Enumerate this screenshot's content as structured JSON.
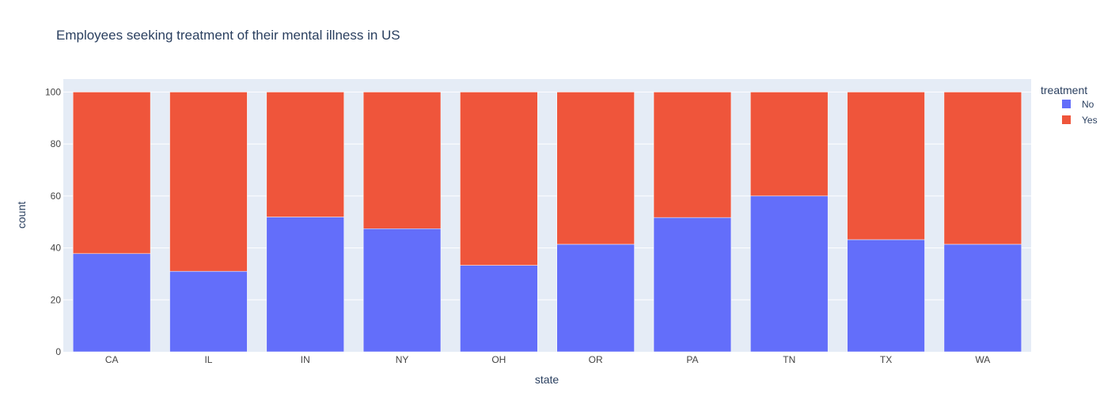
{
  "chart_data": {
    "type": "bar",
    "barmode": "stack",
    "title": "Employees seeking treatment of their mental illness in US",
    "xlabel": "state",
    "ylabel": "count",
    "ylim": [
      0,
      105
    ],
    "yticks": [
      0,
      20,
      40,
      60,
      80,
      100
    ],
    "grid": true,
    "legend": {
      "title": "treatment",
      "position": "top-right"
    },
    "categories": [
      "CA",
      "IL",
      "IN",
      "NY",
      "OH",
      "OR",
      "PA",
      "TN",
      "TX",
      "WA"
    ],
    "series": [
      {
        "name": "No",
        "color": "#636efa",
        "values": [
          37.8,
          31.0,
          51.9,
          47.4,
          33.3,
          41.4,
          51.7,
          60.0,
          43.2,
          41.4
        ]
      },
      {
        "name": "Yes",
        "color": "#ef553b",
        "values": [
          62.2,
          69.0,
          48.1,
          52.6,
          66.7,
          58.6,
          48.3,
          40.0,
          56.8,
          58.6
        ]
      }
    ],
    "colors": {
      "plot_bg": "#e5ecf6",
      "grid": "#ffffff",
      "text": "#2a3f5f",
      "axis_text": "#444444"
    }
  }
}
